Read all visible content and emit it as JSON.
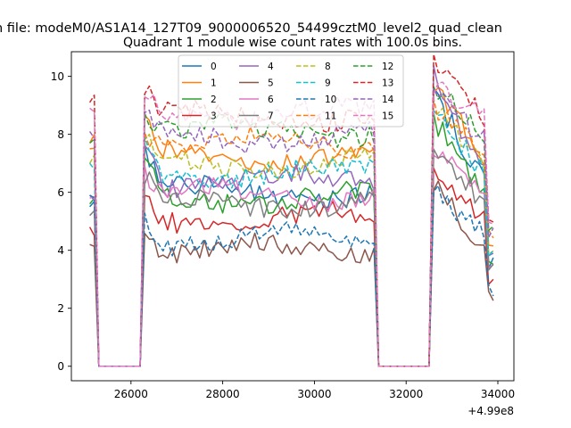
{
  "header": {
    "suptitle": "n file: modeM0/AS1A14_127T09_9000006520_54499cztM0_level2_quad_clean"
  },
  "chart_data": {
    "type": "line",
    "title": "Quadrant 1 module wise count rates with 100.0s bins.",
    "xlabel": "",
    "ylabel": "",
    "x_offset_label": "+4.99e8",
    "xlim": [
      24700,
      34350
    ],
    "ylim": [
      -0.5,
      10.85
    ],
    "x_ticks": [
      26000,
      28000,
      30000,
      32000,
      34000
    ],
    "x_tick_labels": [
      "26000",
      "28000",
      "30000",
      "32000",
      "34000"
    ],
    "y_ticks": [
      0,
      2,
      4,
      6,
      8,
      10
    ],
    "y_tick_labels": [
      "0",
      "2",
      "4",
      "6",
      "8",
      "10"
    ],
    "grid": false,
    "legend": {
      "placement": "top-center",
      "columns": 4
    },
    "segments": [
      {
        "start": 25100,
        "end": 25300,
        "kind": "on"
      },
      {
        "start": 25300,
        "end": 25400,
        "kind": "ramp_down"
      },
      {
        "start": 25400,
        "end": 26200,
        "kind": "off"
      },
      {
        "start": 26200,
        "end": 26300,
        "kind": "ramp_up"
      },
      {
        "start": 26300,
        "end": 31400,
        "kind": "on"
      },
      {
        "start": 31400,
        "end": 31500,
        "kind": "ramp_down"
      },
      {
        "start": 31500,
        "end": 32500,
        "kind": "off"
      },
      {
        "start": 32500,
        "end": 32600,
        "kind": "ramp_up"
      },
      {
        "start": 32600,
        "end": 33900,
        "kind": "on"
      }
    ],
    "series": [
      {
        "name": "0",
        "color": "#1f77b4",
        "style": "solid",
        "level": 6.0,
        "peak": 9.5,
        "first": 5.5
      },
      {
        "name": "1",
        "color": "#ff7f0e",
        "style": "solid",
        "level": 7.3,
        "peak": 9.5,
        "first": 7.7
      },
      {
        "name": "2",
        "color": "#2ca02c",
        "style": "solid",
        "level": 5.8,
        "peak": 8.5,
        "first": 5.6
      },
      {
        "name": "3",
        "color": "#d62728",
        "style": "solid",
        "level": 5.1,
        "peak": 6.8,
        "first": 4.8
      },
      {
        "name": "4",
        "color": "#9467bd",
        "style": "solid",
        "level": 6.4,
        "peak": 10.0,
        "first": 5.9
      },
      {
        "name": "5",
        "color": "#8c564b",
        "style": "solid",
        "level": 4.0,
        "peak": 6.2,
        "first": 4.2
      },
      {
        "name": "6",
        "color": "#e377c2",
        "style": "solid",
        "level": 5.9,
        "peak": 7.6,
        "first": 5.8
      },
      {
        "name": "7",
        "color": "#7f7f7f",
        "style": "solid",
        "level": 5.6,
        "peak": 7.5,
        "first": 5.2
      },
      {
        "name": "8",
        "color": "#bcbd22",
        "style": "dashed",
        "level": 7.0,
        "peak": 8.9,
        "first": 7.0
      },
      {
        "name": "9",
        "color": "#17becf",
        "style": "dashed",
        "level": 6.7,
        "peak": 8.7,
        "first": 7.0
      },
      {
        "name": "10",
        "color": "#1f77b4",
        "style": "dashed",
        "level": 4.4,
        "peak": 6.1,
        "first": 5.9
      },
      {
        "name": "11",
        "color": "#ff7f0e",
        "style": "dashed",
        "level": 7.7,
        "peak": 9.0,
        "first": 7.5
      },
      {
        "name": "12",
        "color": "#2ca02c",
        "style": "dashed",
        "level": 8.1,
        "peak": 9.6,
        "first": 7.7
      },
      {
        "name": "13",
        "color": "#d62728",
        "style": "dashed",
        "level": 8.6,
        "peak": 10.4,
        "first": 9.1
      },
      {
        "name": "14",
        "color": "#9467bd",
        "style": "dashed",
        "level": 7.9,
        "peak": 9.4,
        "first": 8.1
      },
      {
        "name": "15",
        "color": "#e377c2",
        "style": "dashed",
        "level": 8.7,
        "peak": 9.7,
        "first": 8.9
      }
    ]
  }
}
